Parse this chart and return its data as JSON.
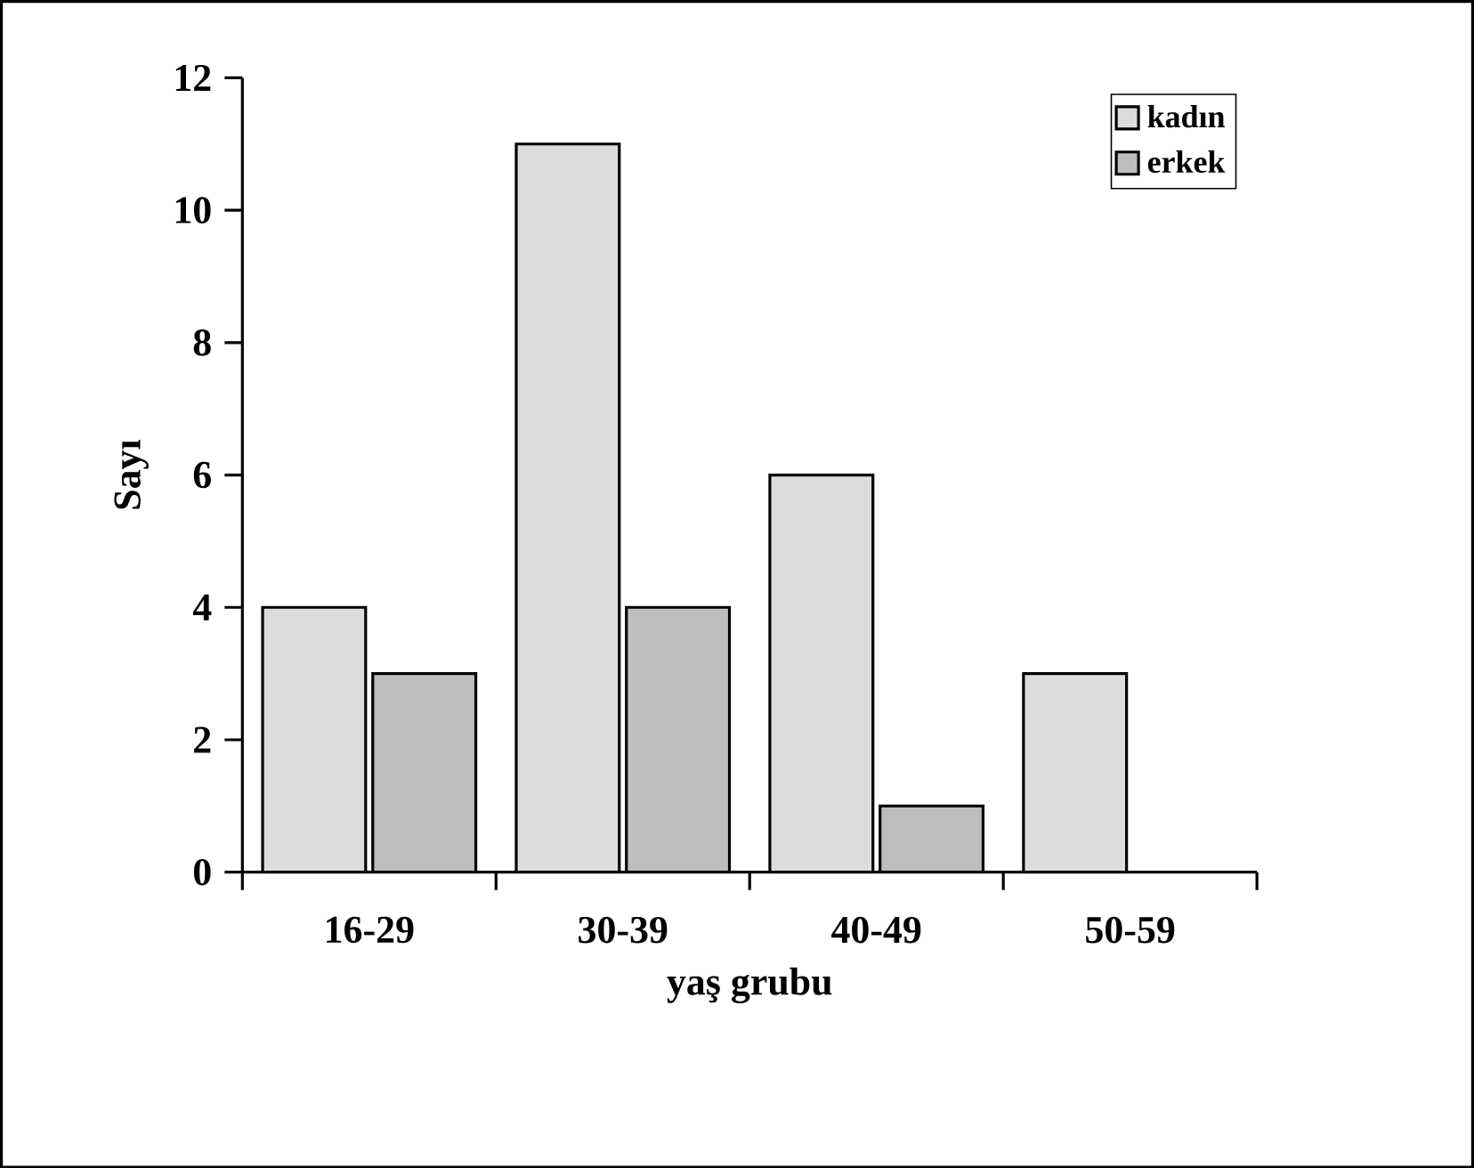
{
  "chart_data": {
    "type": "bar",
    "xlabel": "yaş grubu",
    "ylabel": "Sayı",
    "categories": [
      "16-29",
      "30-39",
      "40-49",
      "50-59"
    ],
    "series": [
      {
        "name": "kadın",
        "color": "#dcdcdc",
        "values": [
          4,
          11,
          6,
          3
        ]
      },
      {
        "name": "erkek",
        "color": "#bdbdbd",
        "values": [
          3,
          4,
          1,
          0
        ]
      }
    ],
    "ylim": [
      0,
      12
    ],
    "yticks": [
      0,
      2,
      4,
      6,
      8,
      10,
      12
    ],
    "grid": false,
    "legend": "top right"
  }
}
